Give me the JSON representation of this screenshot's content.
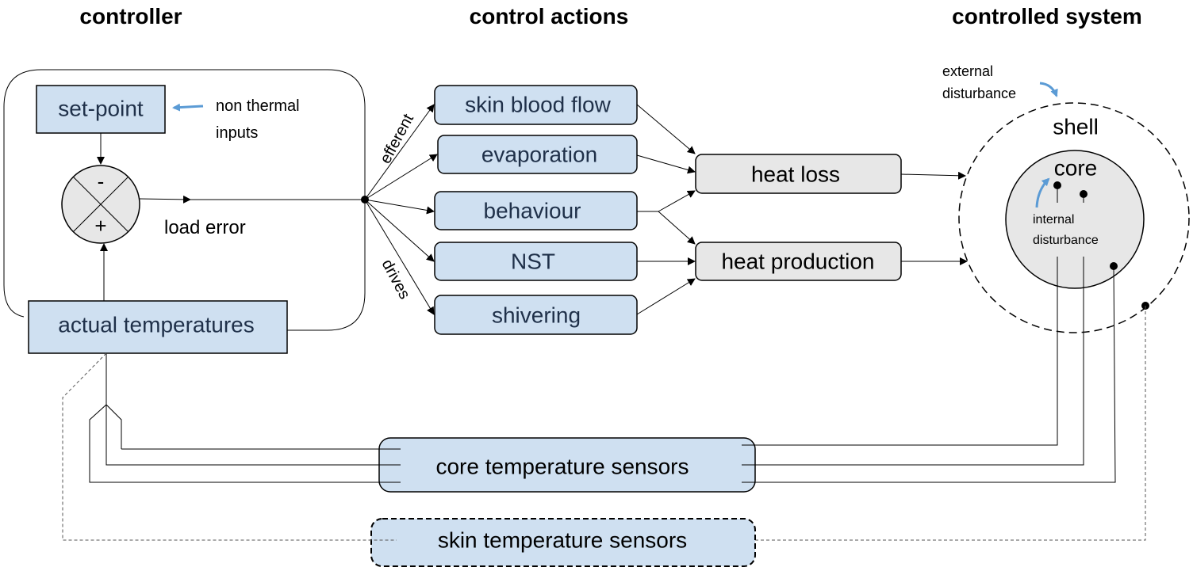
{
  "headers": {
    "controller": "controller",
    "control_actions": "control actions",
    "controlled_system": "controlled system"
  },
  "controller": {
    "set_point": "set-point",
    "non_thermal_inputs": [
      "non thermal",
      "inputs"
    ],
    "sum_minus": "-",
    "sum_plus": "+",
    "load_error": "load error",
    "actual_temperatures": "actual temperatures",
    "efferent": "efferent",
    "drives": "drives"
  },
  "control_actions": [
    "skin blood flow",
    "evaporation",
    "behaviour",
    "NST",
    "shivering"
  ],
  "outputs": {
    "heat_loss": "heat loss",
    "heat_production": "heat production"
  },
  "system": {
    "external_disturbance": [
      "external",
      "disturbance"
    ],
    "shell": "shell",
    "core": "core",
    "internal_disturbance": [
      "internal",
      "disturbance"
    ]
  },
  "sensors": {
    "core": "core temperature sensors",
    "skin": "skin temperature sensors"
  },
  "colors": {
    "box_fill": "#cfe0f1",
    "gray_fill": "#e7e7e7",
    "accent_arrow": "#5b9bd5"
  }
}
